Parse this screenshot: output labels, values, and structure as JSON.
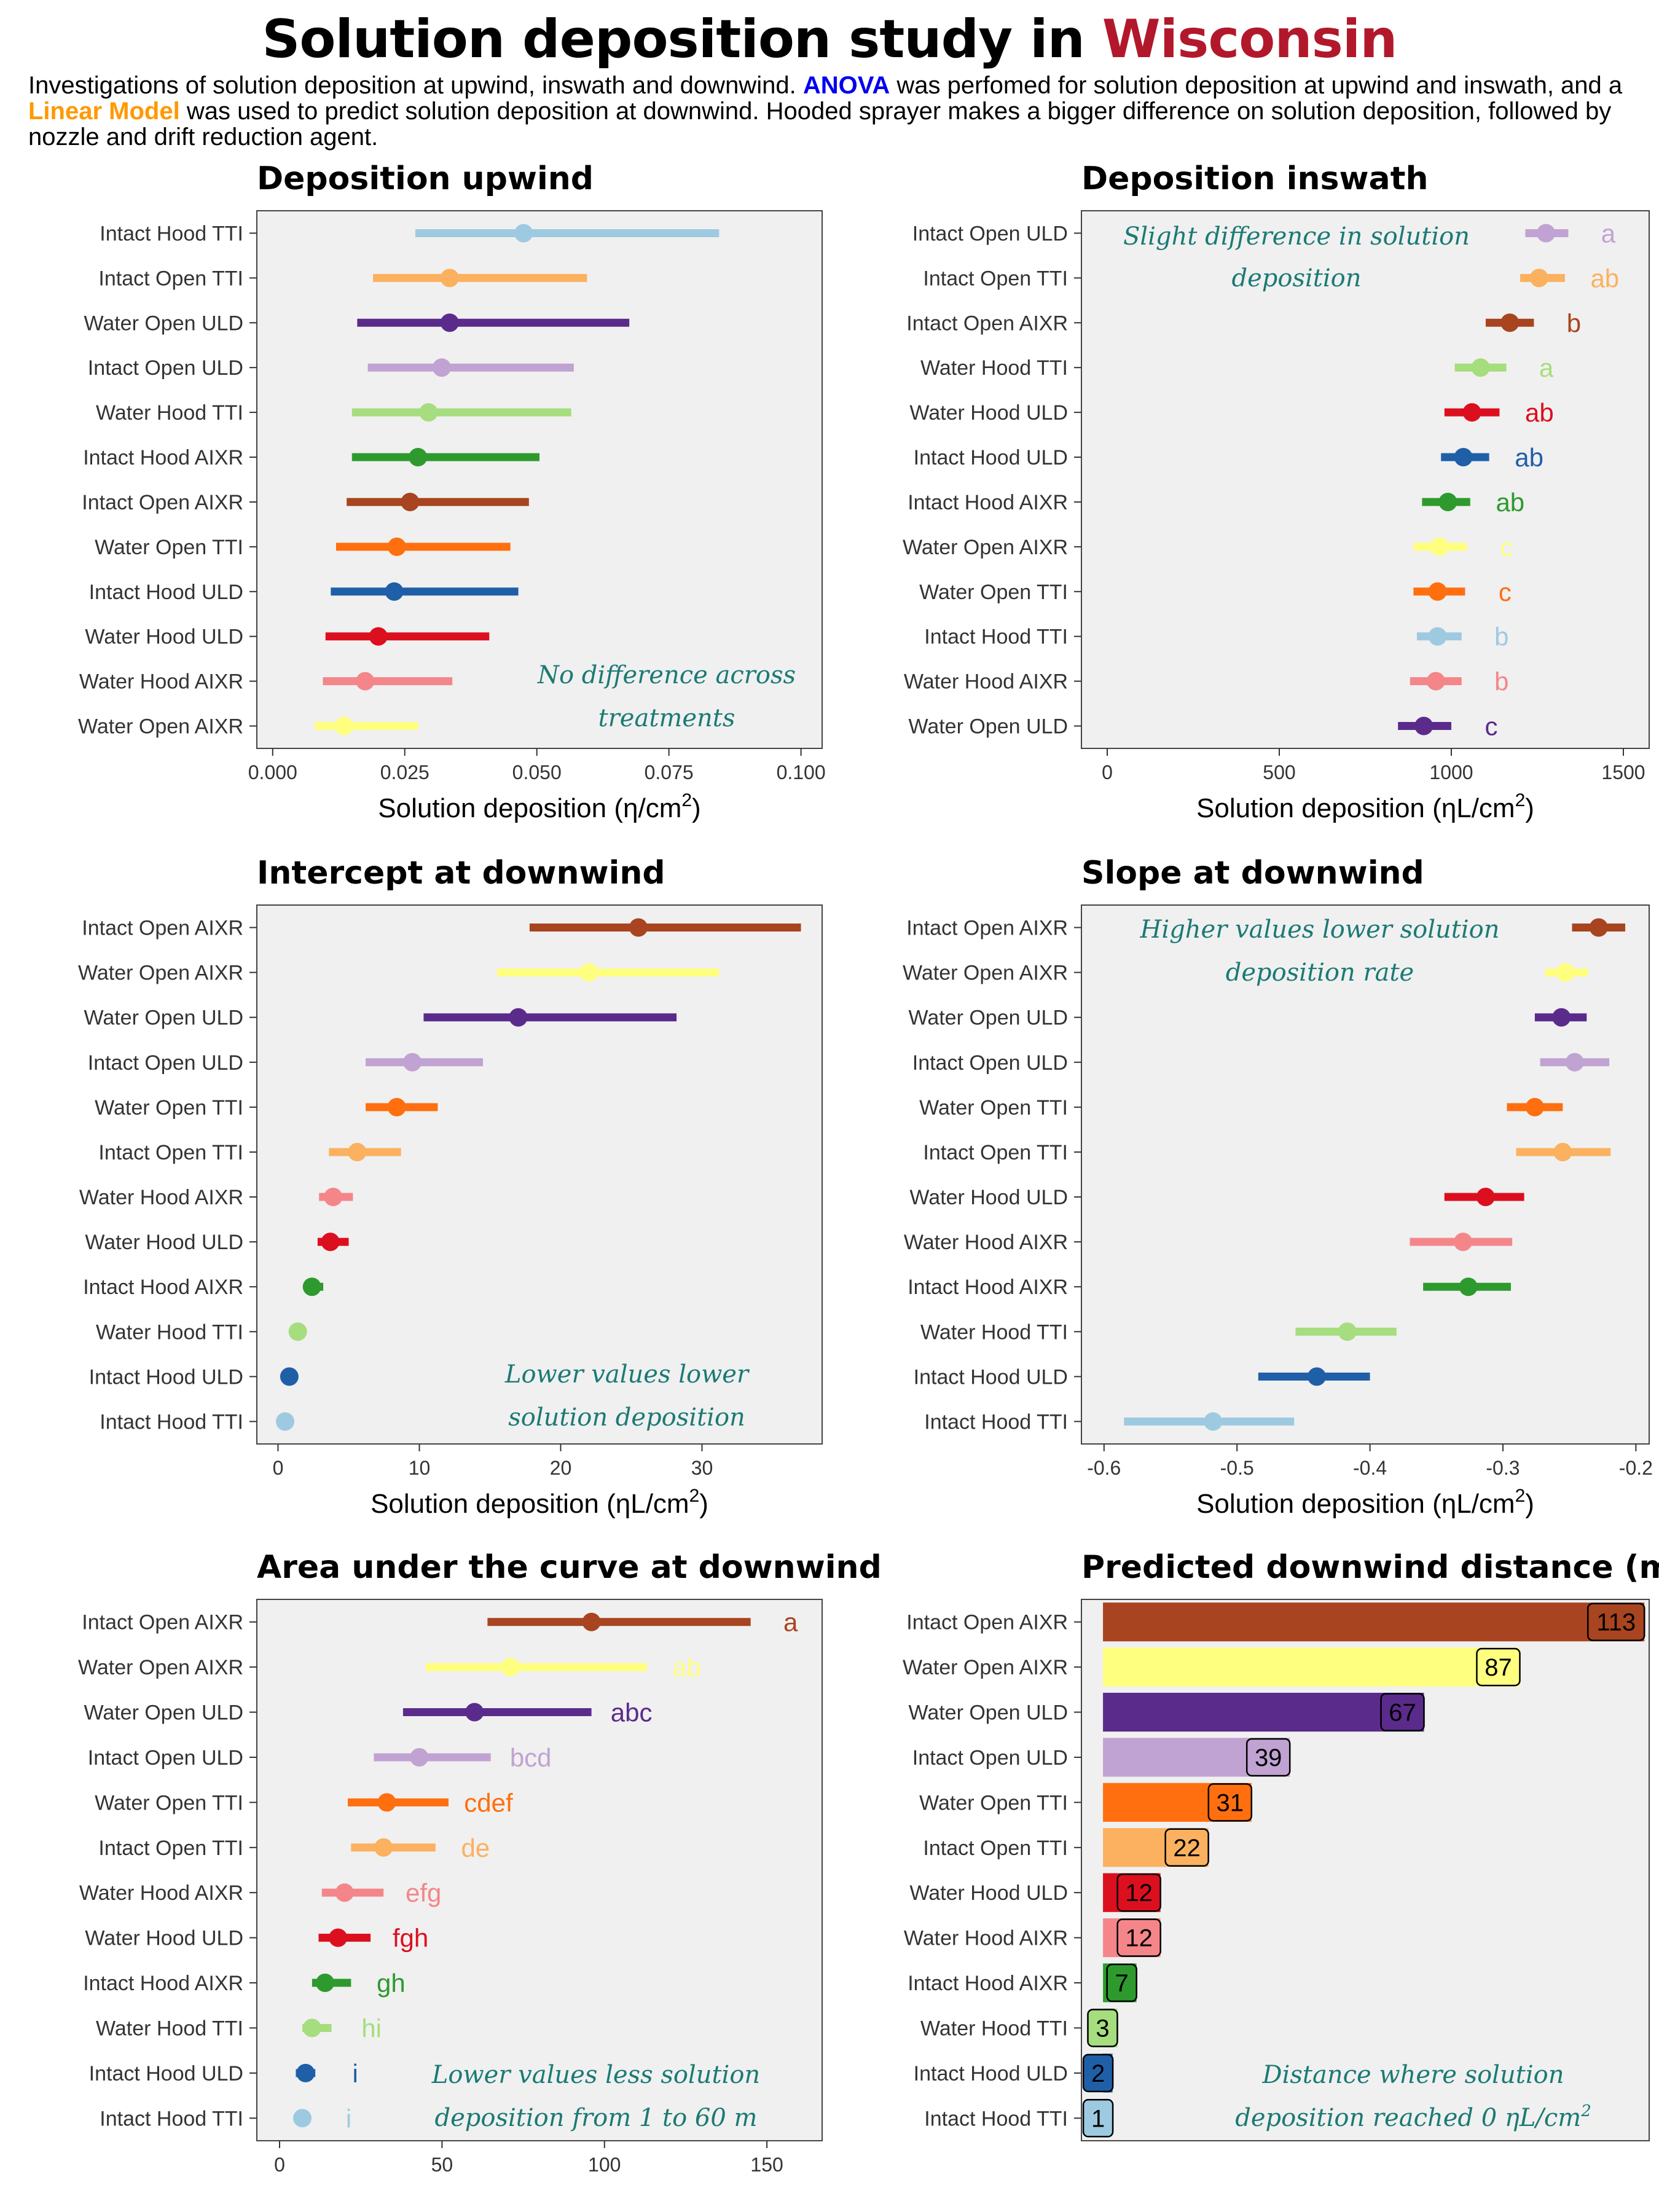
{
  "header": {
    "title_main": "Solution deposition study in ",
    "title_highlight": "Wisconsin",
    "subtitle_1": "Investigations of solution deposition at upwind, inswath and downwind. ",
    "subtitle_anova": "ANOVA",
    "subtitle_2": " was perfomed for solution deposition at upwind and inswath, and a ",
    "subtitle_lm": "Linear Model",
    "subtitle_3": " was used to predict solution deposition at downwind. Hooded sprayer makes a bigger difference on solution deposition, followed by nozzle and drift reduction agent."
  },
  "colors": {
    "Intact Hood TTI": "#9ecae1",
    "Intact Hood ULD": "#1f5fa8",
    "Water Hood TTI": "#a6dd7e",
    "Intact Hood AIXR": "#2e9a2e",
    "Water Hood ULD": "#dc0f1f",
    "Water Hood AIXR": "#f4868a",
    "Intact Open TTI": "#fbb15f",
    "Water Open TTI": "#ff6f0f",
    "Intact Open ULD": "#c0a3d2",
    "Water Open ULD": "#5b2b8c",
    "Water Open AIXR": "#ffff7f",
    "Intact Open AIXR": "#a84420",
    "panel_bg": "#f0f0f0",
    "annotation": "#1b7a74"
  },
  "chart_data": [
    {
      "type": "pointrange",
      "title": "Deposition upwind",
      "xlabel": "Solution deposition (η/cm²)",
      "xlim": [
        -0.003,
        0.104
      ],
      "xticks": [
        0.0,
        0.025,
        0.05,
        0.075,
        0.1
      ],
      "xtick_labels": [
        "0.000",
        "0.025",
        "0.050",
        "0.075",
        "0.100"
      ],
      "annotation": [
        "No difference across",
        "treatments"
      ],
      "rows": [
        {
          "label": "Intact Hood TTI",
          "est": 0.0475,
          "lo": 0.027,
          "hi": 0.0845
        },
        {
          "label": "Intact Open TTI",
          "est": 0.0335,
          "lo": 0.019,
          "hi": 0.0595
        },
        {
          "label": "Water Open ULD",
          "est": 0.0335,
          "lo": 0.016,
          "hi": 0.0675
        },
        {
          "label": "Intact Open ULD",
          "est": 0.032,
          "lo": 0.018,
          "hi": 0.057
        },
        {
          "label": "Water Hood TTI",
          "est": 0.0295,
          "lo": 0.015,
          "hi": 0.0565
        },
        {
          "label": "Intact Hood AIXR",
          "est": 0.0275,
          "lo": 0.015,
          "hi": 0.0505
        },
        {
          "label": "Intact Open AIXR",
          "est": 0.026,
          "lo": 0.014,
          "hi": 0.0485
        },
        {
          "label": "Water Open TTI",
          "est": 0.0235,
          "lo": 0.012,
          "hi": 0.045
        },
        {
          "label": "Intact Hood ULD",
          "est": 0.023,
          "lo": 0.011,
          "hi": 0.0465
        },
        {
          "label": "Water Hood ULD",
          "est": 0.02,
          "lo": 0.01,
          "hi": 0.041
        },
        {
          "label": "Water Hood AIXR",
          "est": 0.0175,
          "lo": 0.0095,
          "hi": 0.034
        },
        {
          "label": "Water Open AIXR",
          "est": 0.0135,
          "lo": 0.008,
          "hi": 0.0275
        }
      ]
    },
    {
      "type": "pointrange",
      "title": "Deposition inswath",
      "xlabel": "Solution deposition (ηL/cm²)",
      "xlim": [
        -75,
        1575
      ],
      "xticks": [
        0,
        500,
        1000,
        1500
      ],
      "xtick_labels": [
        "0",
        "500",
        "1000",
        "1500"
      ],
      "annotation": [
        "Slight difference in solution",
        "deposition"
      ],
      "rows": [
        {
          "label": "Intact Open ULD",
          "est": 1275,
          "lo": 1215,
          "hi": 1340,
          "letter": "a"
        },
        {
          "label": "Intact Open TTI",
          "est": 1255,
          "lo": 1200,
          "hi": 1330,
          "letter": "ab"
        },
        {
          "label": "Intact Open AIXR",
          "est": 1170,
          "lo": 1100,
          "hi": 1240,
          "letter": "b"
        },
        {
          "label": "Water Hood TTI",
          "est": 1085,
          "lo": 1010,
          "hi": 1160,
          "letter": "a"
        },
        {
          "label": "Water Hood ULD",
          "est": 1060,
          "lo": 980,
          "hi": 1140,
          "letter": "ab"
        },
        {
          "label": "Intact Hood ULD",
          "est": 1035,
          "lo": 970,
          "hi": 1110,
          "letter": "ab"
        },
        {
          "label": "Intact Hood AIXR",
          "est": 990,
          "lo": 915,
          "hi": 1055,
          "letter": "ab"
        },
        {
          "label": "Water Open AIXR",
          "est": 965,
          "lo": 890,
          "hi": 1045,
          "letter": "c"
        },
        {
          "label": "Water Open TTI",
          "est": 960,
          "lo": 890,
          "hi": 1040,
          "letter": "c"
        },
        {
          "label": "Intact Hood TTI",
          "est": 960,
          "lo": 900,
          "hi": 1030,
          "letter": "b"
        },
        {
          "label": "Water Hood AIXR",
          "est": 955,
          "lo": 880,
          "hi": 1030,
          "letter": "b"
        },
        {
          "label": "Water Open ULD",
          "est": 920,
          "lo": 845,
          "hi": 1000,
          "letter": "c"
        }
      ]
    },
    {
      "type": "pointrange",
      "title": "Intercept at downwind",
      "xlabel": "Solution deposition (ηL/cm²)",
      "xlim": [
        -1.5,
        38.5
      ],
      "xticks": [
        0,
        10,
        20,
        30
      ],
      "xtick_labels": [
        "0",
        "10",
        "20",
        "30"
      ],
      "annotation": [
        "Lower values lower",
        "solution deposition"
      ],
      "rows": [
        {
          "label": "Intact Open AIXR",
          "est": 25.5,
          "lo": 17.8,
          "hi": 37.0
        },
        {
          "label": "Water Open AIXR",
          "est": 22.0,
          "lo": 15.5,
          "hi": 31.2
        },
        {
          "label": "Water Open ULD",
          "est": 17.0,
          "lo": 10.3,
          "hi": 28.2
        },
        {
          "label": "Intact Open ULD",
          "est": 9.5,
          "lo": 6.2,
          "hi": 14.5
        },
        {
          "label": "Water Open TTI",
          "est": 8.4,
          "lo": 6.2,
          "hi": 11.3
        },
        {
          "label": "Intact Open TTI",
          "est": 5.6,
          "lo": 3.6,
          "hi": 8.7
        },
        {
          "label": "Water Hood AIXR",
          "est": 3.9,
          "lo": 2.9,
          "hi": 5.3
        },
        {
          "label": "Water Hood ULD",
          "est": 3.7,
          "lo": 2.8,
          "hi": 5.0
        },
        {
          "label": "Intact Hood AIXR",
          "est": 2.4,
          "lo": 1.9,
          "hi": 3.2
        },
        {
          "label": "Water Hood TTI",
          "est": 1.4,
          "lo": 1.1,
          "hi": 1.8
        },
        {
          "label": "Intact Hood ULD",
          "est": 0.8,
          "lo": 0.6,
          "hi": 1.1
        },
        {
          "label": "Intact Hood TTI",
          "est": 0.5,
          "lo": 0.35,
          "hi": 0.7
        }
      ]
    },
    {
      "type": "pointrange",
      "title": "Slope at downwind",
      "xlabel": "Solution deposition (ηL/cm²)",
      "xlim": [
        -0.617,
        -0.19
      ],
      "xticks": [
        -0.6,
        -0.5,
        -0.4,
        -0.3,
        -0.2
      ],
      "xtick_labels": [
        "-0.6",
        "-0.5",
        "-0.4",
        "-0.3",
        "-0.2"
      ],
      "annotation": [
        "Higher values lower solution",
        "deposition rate"
      ],
      "rows": [
        {
          "label": "Intact Open AIXR",
          "est": -0.228,
          "lo": -0.248,
          "hi": -0.208
        },
        {
          "label": "Water Open AIXR",
          "est": -0.253,
          "lo": -0.268,
          "hi": -0.236
        },
        {
          "label": "Water Open ULD",
          "est": -0.256,
          "lo": -0.276,
          "hi": -0.237
        },
        {
          "label": "Intact Open ULD",
          "est": -0.246,
          "lo": -0.272,
          "hi": -0.22
        },
        {
          "label": "Water Open TTI",
          "est": -0.276,
          "lo": -0.297,
          "hi": -0.255
        },
        {
          "label": "Intact Open TTI",
          "est": -0.255,
          "lo": -0.29,
          "hi": -0.219
        },
        {
          "label": "Water Hood ULD",
          "est": -0.313,
          "lo": -0.344,
          "hi": -0.284
        },
        {
          "label": "Water Hood AIXR",
          "est": -0.33,
          "lo": -0.37,
          "hi": -0.293
        },
        {
          "label": "Intact Hood AIXR",
          "est": -0.326,
          "lo": -0.36,
          "hi": -0.294
        },
        {
          "label": "Water Hood TTI",
          "est": -0.417,
          "lo": -0.456,
          "hi": -0.38
        },
        {
          "label": "Intact Hood ULD",
          "est": -0.44,
          "lo": -0.484,
          "hi": -0.4
        },
        {
          "label": "Intact Hood TTI",
          "est": -0.518,
          "lo": -0.585,
          "hi": -0.457
        }
      ]
    },
    {
      "type": "pointrange",
      "title": "Area under the curve at downwind",
      "xlabel": "",
      "xlim": [
        -7,
        167
      ],
      "xticks": [
        0,
        50,
        100,
        150
      ],
      "xtick_labels": [
        "0",
        "50",
        "100",
        "150"
      ],
      "annotation": [
        "Lower values less solution",
        "deposition from 1 to 60 m"
      ],
      "rows": [
        {
          "label": "Intact Open AIXR",
          "est": 96,
          "lo": 64,
          "hi": 145,
          "letter": "a"
        },
        {
          "label": "Water Open AIXR",
          "est": 71,
          "lo": 45,
          "hi": 113,
          "letter": "ab"
        },
        {
          "label": "Water Open ULD",
          "est": 60,
          "lo": 38,
          "hi": 96,
          "letter": "abc"
        },
        {
          "label": "Intact Open ULD",
          "est": 43,
          "lo": 29,
          "hi": 65,
          "letter": "bcd"
        },
        {
          "label": "Water Open TTI",
          "est": 33,
          "lo": 21,
          "hi": 52,
          "letter": "cdef"
        },
        {
          "label": "Intact Open TTI",
          "est": 32,
          "lo": 22,
          "hi": 48,
          "letter": "de"
        },
        {
          "label": "Water Hood AIXR",
          "est": 20,
          "lo": 13,
          "hi": 32,
          "letter": "efg"
        },
        {
          "label": "Water Hood ULD",
          "est": 18,
          "lo": 12,
          "hi": 28,
          "letter": "fgh"
        },
        {
          "label": "Intact Hood AIXR",
          "est": 14,
          "lo": 10,
          "hi": 22,
          "letter": "gh"
        },
        {
          "label": "Water Hood TTI",
          "est": 10,
          "lo": 7,
          "hi": 16,
          "letter": "hi"
        },
        {
          "label": "Intact Hood ULD",
          "est": 8,
          "lo": 5,
          "hi": 11,
          "letter": "i"
        },
        {
          "label": "Intact Hood TTI",
          "est": 7,
          "lo": 5,
          "hi": 9,
          "letter": "i"
        }
      ]
    },
    {
      "type": "bar",
      "title": "Predicted downwind distance (m)",
      "xlabel": "",
      "xlim": [
        -4.5,
        114
      ],
      "annotation_line1": "Distance where solution",
      "annotation_line2": "deposition reached 0 ηL/cm",
      "annotation_sup": "2",
      "rows": [
        {
          "label": "Intact Open AIXR",
          "value": 113
        },
        {
          "label": "Water Open AIXR",
          "value": 87
        },
        {
          "label": "Water Open ULD",
          "value": 67
        },
        {
          "label": "Intact Open ULD",
          "value": 39
        },
        {
          "label": "Water Open TTI",
          "value": 31
        },
        {
          "label": "Intact Open TTI",
          "value": 22
        },
        {
          "label": "Water Hood ULD",
          "value": 12
        },
        {
          "label": "Water Hood AIXR",
          "value": 12
        },
        {
          "label": "Intact Hood AIXR",
          "value": 7
        },
        {
          "label": "Water Hood TTI",
          "value": 3
        },
        {
          "label": "Intact Hood ULD",
          "value": 2
        },
        {
          "label": "Intact Hood TTI",
          "value": 1
        }
      ]
    }
  ]
}
